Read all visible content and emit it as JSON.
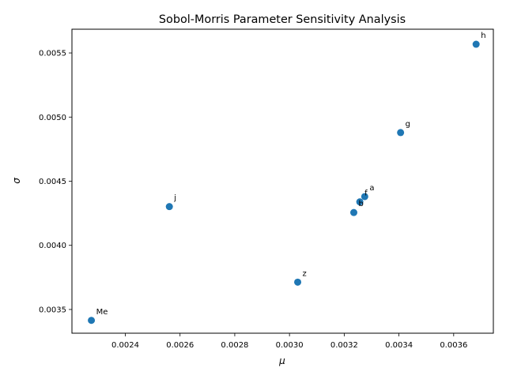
{
  "chart_data": {
    "type": "scatter",
    "title": "Sobol-Morris Parameter Sensitivity Analysis",
    "xlabel": "μ",
    "ylabel": "σ",
    "xlim": [
      0.002205,
      0.003745
    ],
    "ylim": [
      0.003315,
      0.005685
    ],
    "xticks": [
      0.0024,
      0.0026,
      0.0028,
      0.003,
      0.0032,
      0.0034,
      0.0036
    ],
    "xtick_labels": [
      "0.0024",
      "0.0026",
      "0.0028",
      "0.0030",
      "0.0032",
      "0.0034",
      "0.0036"
    ],
    "yticks": [
      0.0035,
      0.004,
      0.0045,
      0.005,
      0.0055
    ],
    "ytick_labels": [
      "0.0035",
      "0.0040",
      "0.0045",
      "0.0050",
      "0.0055"
    ],
    "grid": false,
    "marker_color": "#1f77b4",
    "points": [
      {
        "label": "Me",
        "x": 0.002276,
        "y": 0.003415
      },
      {
        "label": "j",
        "x": 0.002561,
        "y": 0.004302
      },
      {
        "label": "z",
        "x": 0.00303,
        "y": 0.003713
      },
      {
        "label": "b",
        "x": 0.003235,
        "y": 0.004256
      },
      {
        "label": "f",
        "x": 0.003257,
        "y": 0.004339
      },
      {
        "label": "a",
        "x": 0.003275,
        "y": 0.00438
      },
      {
        "label": "g",
        "x": 0.003406,
        "y": 0.004879
      },
      {
        "label": "h",
        "x": 0.003682,
        "y": 0.005568
      }
    ]
  }
}
